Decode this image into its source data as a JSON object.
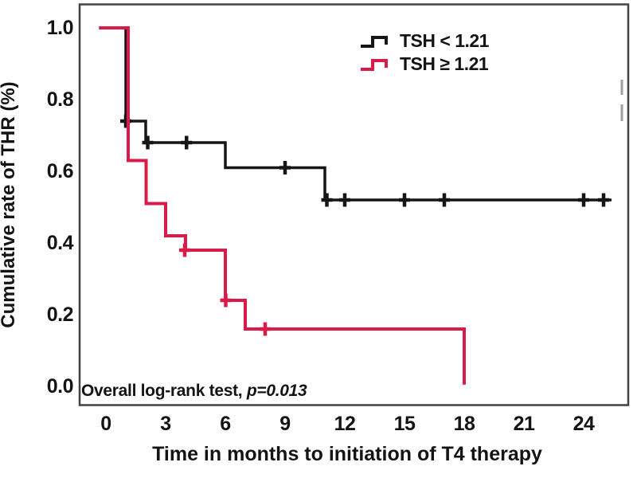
{
  "figure": {
    "y_axis_label": "Cumulative rate of THR (%)",
    "x_axis_label": "Time in months to initiation of T4 therapy",
    "annotation": {
      "prefix": "Overall log-rank test, ",
      "stat": "p=0.013"
    },
    "colors": {
      "black_series": "#161616",
      "red_series": "#da1b4a",
      "frame": "#3f4347",
      "edge_dash": "#9ba1a5",
      "text": "#141414"
    }
  },
  "chart_data": {
    "type": "line",
    "subtype": "kaplan-meier-step",
    "title": "",
    "xlabel": "Time in months to initiation of T4 therapy",
    "ylabel": "Cumulative rate of THR (%)",
    "xlim": [
      -1.3,
      26.4
    ],
    "ylim": [
      -0.05,
      1.07
    ],
    "x_tick_values": [
      0,
      3,
      6,
      9,
      12,
      15,
      18,
      21,
      24
    ],
    "x_tick_labels": [
      "0",
      "3",
      "6",
      "9",
      "12",
      "15",
      "18",
      "21",
      "24"
    ],
    "y_tick_values": [
      1.0,
      0.8,
      0.6,
      0.4,
      0.2,
      0.0
    ],
    "y_tick_labels": [
      "1.0",
      "0.8",
      "0.6",
      "0.4",
      "0.2",
      "0.0"
    ],
    "grid": false,
    "legend_position": "top-right",
    "annotation": "Overall log-rank test, p=0.013",
    "series": [
      {
        "id": "tsh-lt-121",
        "name": "TSH < 1.21",
        "color": "#161616",
        "width": 3.5,
        "steps": [
          [
            0,
            1.0
          ],
          [
            1.0,
            0.74
          ],
          [
            2.0,
            0.68
          ],
          [
            6.0,
            0.61
          ],
          [
            11.0,
            0.52
          ]
        ],
        "end_time": 25.4,
        "censors": [
          [
            1.0,
            0.74
          ],
          [
            2.1,
            0.68
          ],
          [
            4.05,
            0.68
          ],
          [
            9.0,
            0.61
          ],
          [
            11.1,
            0.52
          ],
          [
            12.0,
            0.52
          ],
          [
            15.0,
            0.52
          ],
          [
            17.0,
            0.52
          ],
          [
            24.0,
            0.52
          ],
          [
            25.0,
            0.52
          ]
        ]
      },
      {
        "id": "tsh-ge-121",
        "name": "TSH ≥ 1.21",
        "color": "#da1b4a",
        "width": 4,
        "steps": [
          [
            -0.35,
            1.0
          ],
          [
            1.12,
            0.63
          ],
          [
            2.02,
            0.51
          ],
          [
            3.0,
            0.42
          ],
          [
            4.0,
            0.38
          ],
          [
            6.0,
            0.24
          ],
          [
            7.0,
            0.16
          ],
          [
            18.0,
            0.005
          ]
        ],
        "end_time": 18.0,
        "censors": [
          [
            3.96,
            0.38
          ],
          [
            6.02,
            0.24
          ],
          [
            8.0,
            0.16
          ]
        ]
      }
    ]
  }
}
